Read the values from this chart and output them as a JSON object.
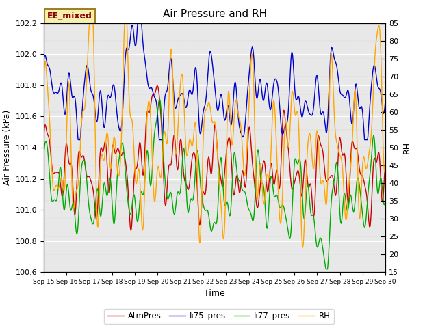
{
  "title": "Air Pressure and RH",
  "xlabel": "Time",
  "ylabel_left": "Air Pressure (kPa)",
  "ylabel_right": "RH",
  "ylim_left": [
    100.6,
    102.2
  ],
  "ylim_right": [
    15,
    85
  ],
  "yticks_left": [
    100.6,
    100.8,
    101.0,
    101.2,
    101.4,
    101.6,
    101.8,
    102.0,
    102.2
  ],
  "yticks_right": [
    15,
    20,
    25,
    30,
    35,
    40,
    45,
    50,
    55,
    60,
    65,
    70,
    75,
    80,
    85
  ],
  "xtick_labels": [
    "Sep 15",
    "Sep 16",
    "Sep 17",
    "Sep 18",
    "Sep 19",
    "Sep 20",
    "Sep 21",
    "Sep 22",
    "Sep 23",
    "Sep 24",
    "Sep 25",
    "Sep 26",
    "Sep 27",
    "Sep 28",
    "Sep 29",
    "Sep 30"
  ],
  "annotation_text": "EE_mixed",
  "annotation_fgcolor": "#8B0000",
  "annotation_bg": "#F5F0B0",
  "annotation_edgecolor": "#A08020",
  "bg_color": "#E8E8E8",
  "line_colors": {
    "AtmPres": "#CC0000",
    "li75_pres": "#0000CC",
    "li77_pres": "#00AA00",
    "RH": "#FFA500"
  },
  "legend_labels": [
    "AtmPres",
    "li75_pres",
    "li77_pres",
    "RH"
  ],
  "linewidth": 1.0,
  "figsize": [
    6.4,
    4.8
  ],
  "dpi": 100
}
